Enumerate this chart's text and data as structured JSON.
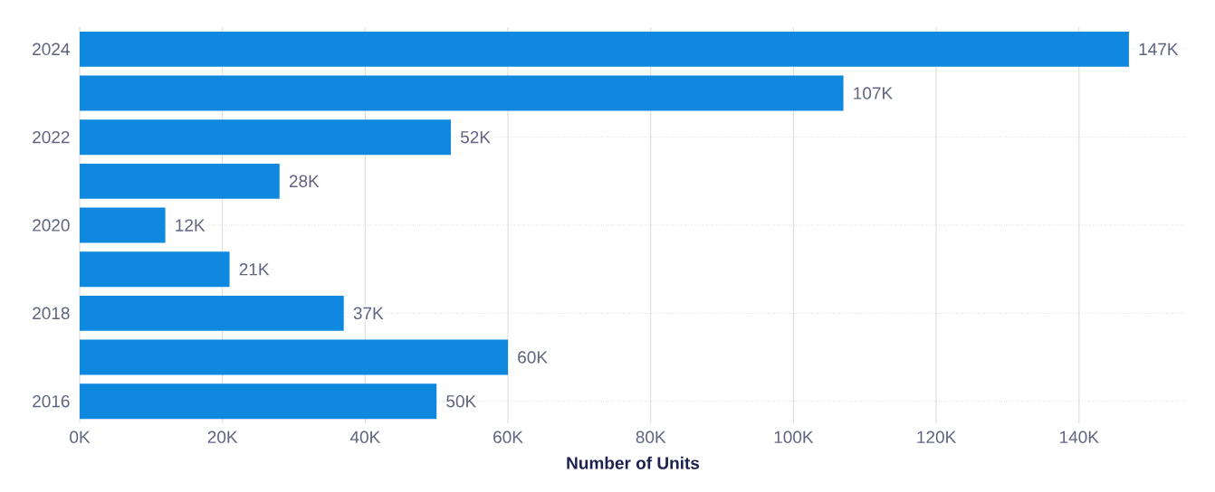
{
  "chart_data": {
    "type": "bar",
    "orientation": "horizontal",
    "xlabel": "Number of Units",
    "categories": [
      "2024",
      null,
      "2022",
      null,
      "2020",
      null,
      "2018",
      null,
      "2016"
    ],
    "values": [
      147000,
      107000,
      52000,
      28000,
      12000,
      21000,
      37000,
      60000,
      50000
    ],
    "value_labels": [
      "147K",
      "107K",
      "52K",
      "28K",
      "12K",
      "21K",
      "37K",
      "60K",
      "50K"
    ],
    "color": "#0f88e0",
    "xlim": [
      0,
      155000
    ],
    "xticks": [
      {
        "value": 0,
        "label": "0K"
      },
      {
        "value": 20000,
        "label": "20K"
      },
      {
        "value": 40000,
        "label": "40K"
      },
      {
        "value": 60000,
        "label": "60K"
      },
      {
        "value": 80000,
        "label": "80K"
      },
      {
        "value": 100000,
        "label": "100K"
      },
      {
        "value": 120000,
        "label": "120K"
      },
      {
        "value": 140000,
        "label": "140K"
      }
    ],
    "grid": true
  }
}
